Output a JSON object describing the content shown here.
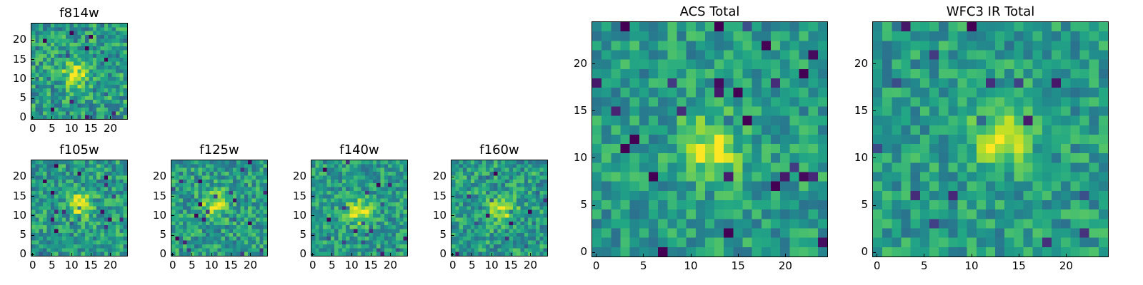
{
  "chart_data": [
    {
      "type": "heatmap",
      "title": "f814w",
      "grid": [
        25,
        25
      ],
      "colormap": "viridis",
      "xticks": [
        "0",
        "5",
        "10",
        "15",
        "20"
      ],
      "yticks": [
        "0",
        "5",
        "10",
        "15",
        "20"
      ],
      "xlim": [
        -0.5,
        24.5
      ],
      "ylim": [
        -0.5,
        24.5
      ],
      "seed": 11,
      "peak": [
        11,
        11
      ],
      "noise": 0.38
    },
    {
      "type": "heatmap",
      "title": "f105w",
      "grid": [
        25,
        25
      ],
      "colormap": "viridis",
      "xticks": [
        "0",
        "5",
        "10",
        "15",
        "20"
      ],
      "yticks": [
        "0",
        "5",
        "10",
        "15",
        "20"
      ],
      "xlim": [
        -0.5,
        24.5
      ],
      "ylim": [
        -0.5,
        24.5
      ],
      "seed": 23,
      "peak": [
        12,
        13
      ],
      "noise": 0.35
    },
    {
      "type": "heatmap",
      "title": "f125w",
      "grid": [
        25,
        25
      ],
      "colormap": "viridis",
      "xticks": [
        "0",
        "5",
        "10",
        "15",
        "20"
      ],
      "yticks": [
        "0",
        "5",
        "10",
        "15",
        "20"
      ],
      "xlim": [
        -0.5,
        24.5
      ],
      "ylim": [
        -0.5,
        24.5
      ],
      "seed": 37,
      "peak": [
        11,
        13
      ],
      "noise": 0.35
    },
    {
      "type": "heatmap",
      "title": "f140w",
      "grid": [
        25,
        25
      ],
      "colormap": "viridis",
      "xticks": [
        "0",
        "5",
        "10",
        "15",
        "20"
      ],
      "yticks": [
        "0",
        "5",
        "10",
        "15",
        "20"
      ],
      "xlim": [
        -0.5,
        24.5
      ],
      "ylim": [
        -0.5,
        24.5
      ],
      "seed": 41,
      "peak": [
        12,
        11
      ],
      "noise": 0.32
    },
    {
      "type": "heatmap",
      "title": "f160w",
      "grid": [
        25,
        25
      ],
      "colormap": "viridis",
      "xticks": [
        "0",
        "5",
        "10",
        "15",
        "20"
      ],
      "yticks": [
        "0",
        "5",
        "10",
        "15",
        "20"
      ],
      "xlim": [
        -0.5,
        24.5
      ],
      "ylim": [
        -0.5,
        24.5
      ],
      "seed": 53,
      "peak": [
        13,
        12
      ],
      "noise": 0.35
    },
    {
      "type": "heatmap",
      "title": "ACS Total",
      "grid": [
        25,
        25
      ],
      "colormap": "viridis",
      "xticks": [
        "0",
        "5",
        "10",
        "15",
        "20"
      ],
      "yticks": [
        "0",
        "5",
        "10",
        "15",
        "20"
      ],
      "xlim": [
        -0.5,
        24.5
      ],
      "ylim": [
        -0.5,
        24.5
      ],
      "seed": 67,
      "peak": [
        12,
        11
      ],
      "noise": 0.3
    },
    {
      "type": "heatmap",
      "title": "WFC3 IR Total",
      "grid": [
        25,
        25
      ],
      "colormap": "viridis",
      "xticks": [
        "0",
        "5",
        "10",
        "15",
        "20"
      ],
      "yticks": [
        "0",
        "5",
        "10",
        "15",
        "20"
      ],
      "xlim": [
        -0.5,
        24.5
      ],
      "ylim": [
        -0.5,
        24.5
      ],
      "seed": 79,
      "peak": [
        13,
        12
      ],
      "noise": 0.3
    }
  ]
}
